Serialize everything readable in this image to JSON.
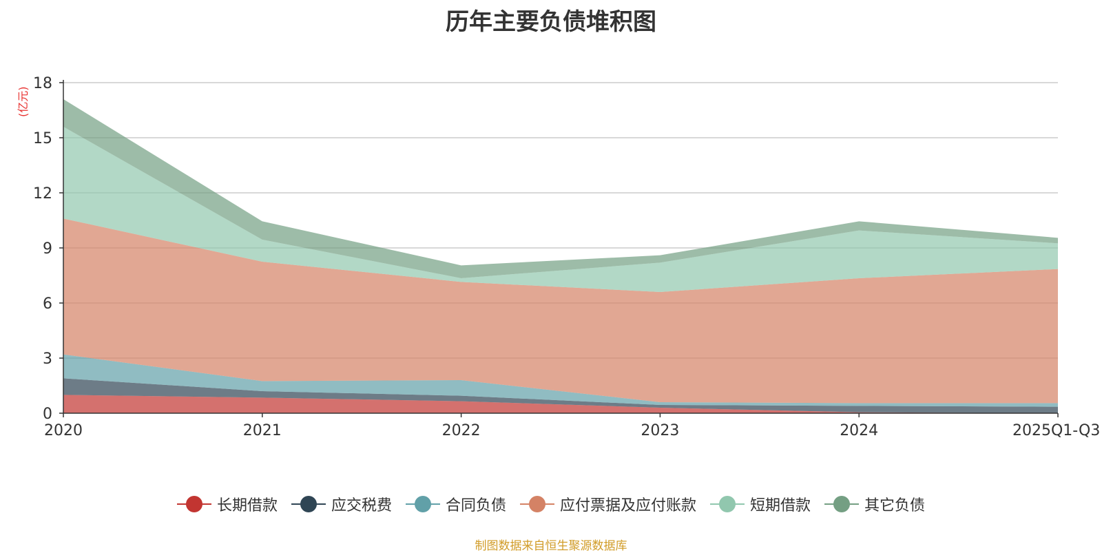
{
  "chart_data": {
    "type": "area",
    "stacked": true,
    "title": "历年主要负债堆积图",
    "unit_label": "(亿元)",
    "xlabel": "",
    "ylabel": "(亿元)",
    "categories": [
      "2020",
      "2021",
      "2022",
      "2023",
      "2024",
      "2025Q1-Q3"
    ],
    "ylim": [
      0,
      18
    ],
    "yticks": [
      0,
      3,
      6,
      9,
      12,
      15,
      18
    ],
    "grid": true,
    "legend_position": "bottom",
    "series": [
      {
        "name": "长期借款",
        "color": "#c23531",
        "values": [
          1.0,
          0.85,
          0.65,
          0.3,
          0.05,
          0.0
        ]
      },
      {
        "name": "应交税费",
        "color": "#2f4554",
        "values": [
          0.9,
          0.35,
          0.3,
          0.15,
          0.35,
          0.35
        ]
      },
      {
        "name": "合同负债",
        "color": "#61a0a8",
        "values": [
          1.3,
          0.55,
          0.85,
          0.15,
          0.15,
          0.2
        ]
      },
      {
        "name": "应付票据及应付账款",
        "color": "#d48265",
        "values": [
          7.4,
          6.5,
          5.35,
          6.0,
          6.8,
          7.3
        ]
      },
      {
        "name": "短期借款",
        "color": "#91c7ae",
        "values": [
          5.0,
          1.2,
          0.2,
          1.6,
          2.6,
          1.4
        ]
      },
      {
        "name": "其它负债",
        "color": "#749f83",
        "values": [
          1.5,
          1.0,
          0.7,
          0.4,
          0.5,
          0.3
        ]
      }
    ]
  },
  "source_note": "制图数据来自恒生聚源数据库"
}
